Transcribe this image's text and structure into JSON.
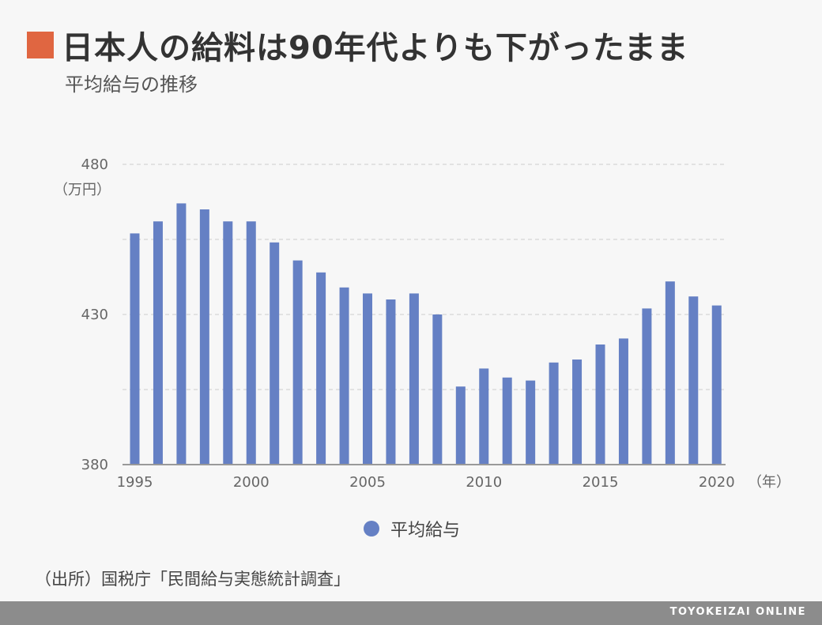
{
  "header": {
    "title": "日本人の給料は90年代よりも下がったまま",
    "subtitle": "平均給与の推移",
    "accent_color": "#e06641"
  },
  "chart_data": {
    "type": "bar",
    "categories": [
      1995,
      1996,
      1997,
      1998,
      1999,
      2000,
      2001,
      2002,
      2003,
      2004,
      2005,
      2006,
      2007,
      2008,
      2009,
      2010,
      2011,
      2012,
      2013,
      2014,
      2015,
      2016,
      2017,
      2018,
      2019,
      2020
    ],
    "series": [
      {
        "name": "平均給与",
        "color": "#6580c4",
        "values": [
          457,
          461,
          467,
          465,
          461,
          461,
          454,
          448,
          444,
          439,
          437,
          435,
          437,
          430,
          406,
          412,
          409,
          408,
          414,
          415,
          420,
          422,
          432,
          441,
          436,
          433
        ]
      }
    ],
    "ylim": [
      380,
      480
    ],
    "yticks": [
      380,
      430,
      480
    ],
    "xticks": [
      1995,
      2000,
      2005,
      2010,
      2015,
      2020
    ],
    "y_unit_label": "（万円）",
    "x_unit_label": "（年）",
    "grid": true,
    "legend_position": "bottom-center"
  },
  "source": "（出所）国税庁「民間給与実態統計調査」",
  "footer": {
    "brand": "TOYOKEIZAI ONLINE"
  }
}
